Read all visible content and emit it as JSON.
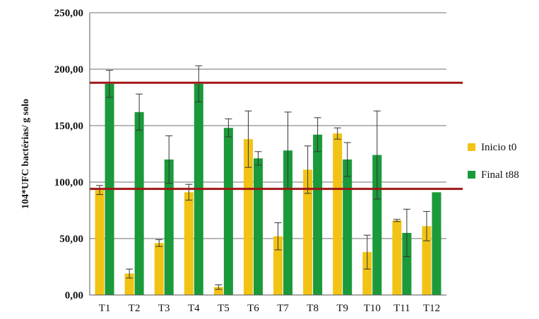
{
  "chart_data": {
    "type": "bar",
    "ylabel": "104*UFC bactérias/ g solo",
    "ylim": [
      0,
      250
    ],
    "yticks": [
      "0,00",
      "50,00",
      "100,00",
      "150,00",
      "200,00",
      "250,00"
    ],
    "grid": true,
    "legend_position": "right",
    "categories": [
      "T1",
      "T2",
      "T3",
      "T4",
      "T5",
      "T6",
      "T7",
      "T8",
      "T9",
      "T10",
      "T11",
      "T12"
    ],
    "series": [
      {
        "name": "Inicio t0",
        "color": "#f2c314",
        "values": [
          93,
          19,
          46,
          91,
          7,
          138,
          52,
          111,
          143,
          38,
          66,
          61
        ],
        "errors": [
          4,
          4,
          3,
          7,
          2,
          25,
          12,
          21,
          5,
          15,
          1,
          13
        ]
      },
      {
        "name": "Final t88",
        "color": "#1a9a3a",
        "values": [
          187,
          162,
          120,
          187,
          148,
          121,
          128,
          142,
          120,
          124,
          55,
          91
        ],
        "errors": [
          12,
          16,
          21,
          16,
          8,
          6,
          34,
          15,
          15,
          39,
          21,
          0
        ]
      }
    ],
    "reference_lines": [
      {
        "y": 188,
        "color": "#a11616"
      },
      {
        "y": 94,
        "color": "#a11616"
      }
    ]
  }
}
